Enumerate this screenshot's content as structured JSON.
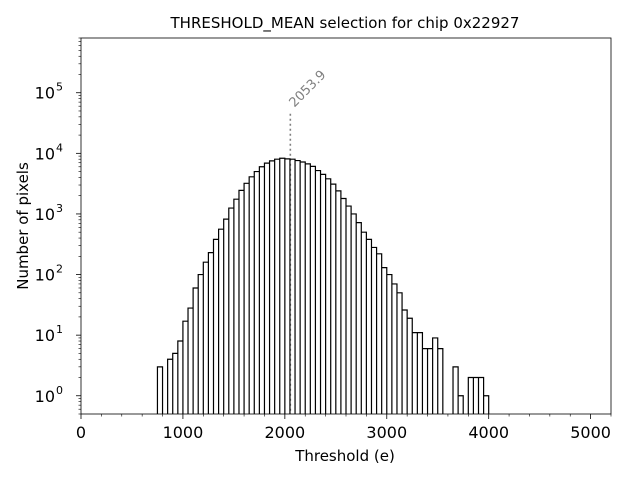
{
  "chart_data": {
    "type": "histogram",
    "title": "THRESHOLD_MEAN selection for chip 0x22927",
    "xlabel": "Threshold (e)",
    "ylabel": "Number of pixels",
    "xlim": [
      0,
      5200
    ],
    "ylim": [
      0.5,
      800000
    ],
    "yscale": "log",
    "bin_width": 50,
    "x_ticks": [
      0,
      1000,
      2000,
      3000,
      4000,
      5000
    ],
    "x_tick_labels": [
      "0",
      "1000",
      "2000",
      "3000",
      "4000",
      "5000"
    ],
    "y_ticks": [
      1,
      10,
      100,
      1000,
      10000,
      100000
    ],
    "y_tick_bases": [
      "10",
      "10",
      "10",
      "10",
      "10",
      "10"
    ],
    "y_tick_exponents": [
      "0",
      "1",
      "2",
      "3",
      "4",
      "5"
    ],
    "mean_line": {
      "x": 2053.9,
      "label": "2053.9",
      "y_top": 45000,
      "color": "#808080"
    },
    "bins": [
      [
        750,
        3
      ],
      [
        850,
        4
      ],
      [
        900,
        5
      ],
      [
        950,
        8
      ],
      [
        1000,
        17
      ],
      [
        1050,
        28
      ],
      [
        1100,
        60
      ],
      [
        1150,
        100
      ],
      [
        1200,
        160
      ],
      [
        1250,
        230
      ],
      [
        1300,
        380
      ],
      [
        1350,
        560
      ],
      [
        1400,
        820
      ],
      [
        1450,
        1250
      ],
      [
        1500,
        1750
      ],
      [
        1550,
        2450
      ],
      [
        1600,
        3200
      ],
      [
        1650,
        4100
      ],
      [
        1700,
        5000
      ],
      [
        1750,
        6000
      ],
      [
        1800,
        6900
      ],
      [
        1850,
        7500
      ],
      [
        1900,
        8000
      ],
      [
        1950,
        8300
      ],
      [
        2000,
        8100
      ],
      [
        2050,
        8000
      ],
      [
        2100,
        7600
      ],
      [
        2150,
        7200
      ],
      [
        2200,
        6700
      ],
      [
        2250,
        6100
      ],
      [
        2300,
        5200
      ],
      [
        2350,
        4500
      ],
      [
        2400,
        3800
      ],
      [
        2450,
        3100
      ],
      [
        2500,
        2400
      ],
      [
        2550,
        1800
      ],
      [
        2600,
        1350
      ],
      [
        2650,
        1000
      ],
      [
        2700,
        720
      ],
      [
        2750,
        500
      ],
      [
        2800,
        380
      ],
      [
        2850,
        280
      ],
      [
        2900,
        220
      ],
      [
        2950,
        130
      ],
      [
        3000,
        100
      ],
      [
        3050,
        70
      ],
      [
        3100,
        50
      ],
      [
        3150,
        26
      ],
      [
        3200,
        19
      ],
      [
        3250,
        11
      ],
      [
        3300,
        11
      ],
      [
        3350,
        6
      ],
      [
        3400,
        6
      ],
      [
        3450,
        9
      ],
      [
        3500,
        6
      ],
      [
        3550,
        0
      ],
      [
        3600,
        0
      ],
      [
        3650,
        3
      ],
      [
        3700,
        1
      ],
      [
        3750,
        0
      ],
      [
        3800,
        2
      ],
      [
        3850,
        2
      ],
      [
        3900,
        2
      ],
      [
        3950,
        1
      ]
    ]
  }
}
